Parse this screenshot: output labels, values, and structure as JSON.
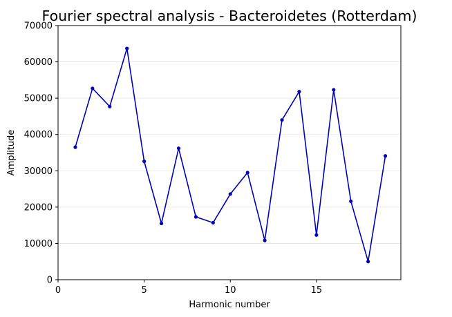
{
  "chart_data": {
    "type": "line",
    "title": "Fourier spectral analysis - Bacteroidetes (Rotterdam)",
    "xlabel": "Harmonic number",
    "ylabel": "Amplitude",
    "xlim": [
      0,
      19.9
    ],
    "ylim": [
      0,
      70000
    ],
    "xticks": [
      0,
      5,
      10,
      15
    ],
    "yticks": [
      0,
      10000,
      20000,
      30000,
      40000,
      50000,
      60000,
      70000
    ],
    "grid": "horizontal",
    "legend": "none",
    "series": [
      {
        "color": "#0000bb",
        "marker": "circle",
        "x": [
          1,
          2,
          3,
          4,
          5,
          6,
          7,
          8,
          9,
          10,
          11,
          12,
          13,
          14,
          15,
          16,
          17,
          18,
          19
        ],
        "y": [
          36500,
          52700,
          47700,
          63700,
          32600,
          15500,
          36200,
          17300,
          15700,
          23600,
          29500,
          10800,
          44000,
          51800,
          12300,
          52300,
          21600,
          5000,
          34100
        ]
      }
    ]
  }
}
